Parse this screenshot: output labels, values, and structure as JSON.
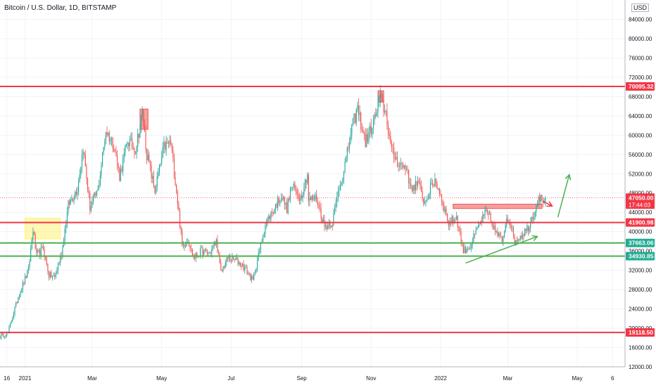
{
  "chart_data": {
    "type": "candlestick",
    "title": "Bitcoin / U.S. Dollar, 1D, BITSTAMP",
    "currency": "USD",
    "ylim": [
      12000,
      88000
    ],
    "y_ticks": [
      12000,
      16000,
      20000,
      24000,
      28000,
      32000,
      36000,
      40000,
      44000,
      48000,
      52000,
      56000,
      60000,
      64000,
      68000,
      72000,
      76000,
      80000,
      84000
    ],
    "y_tick_labels": [
      "12000.00",
      "16000.00",
      "20000.00",
      "24000.00",
      "28000.00",
      "32000.00",
      "36000.00",
      "40000.00",
      "44000.00",
      "48000.00",
      "52000.00",
      "56000.00",
      "60000.00",
      "64000.00",
      "68000.00",
      "72000.00",
      "76000.00",
      "80000.00",
      "84000.00"
    ],
    "x_ticks": [
      {
        "date": "2020-12-16",
        "label": "16"
      },
      {
        "date": "2021-01-01",
        "label": "2021"
      },
      {
        "date": "2021-03-01",
        "label": "Mar"
      },
      {
        "date": "2021-05-01",
        "label": "May"
      },
      {
        "date": "2021-07-01",
        "label": "Jul"
      },
      {
        "date": "2021-09-01",
        "label": "Sep"
      },
      {
        "date": "2021-11-01",
        "label": "Nov"
      },
      {
        "date": "2022-01-01",
        "label": "2022"
      },
      {
        "date": "2022-03-01",
        "label": "Mar"
      },
      {
        "date": "2022-05-01",
        "label": "May"
      },
      {
        "date": "2022-06-01",
        "label": "6"
      }
    ],
    "x_range": [
      "2020-12-10",
      "2022-06-12"
    ],
    "grid": true,
    "price_path": [
      [
        "2020-12-10",
        18300
      ],
      [
        "2020-12-17",
        19000
      ],
      [
        "2020-12-22",
        23200
      ],
      [
        "2020-12-26",
        26500
      ],
      [
        "2020-12-30",
        29000
      ],
      [
        "2021-01-04",
        32000
      ],
      [
        "2021-01-08",
        40500
      ],
      [
        "2021-01-11",
        35000
      ],
      [
        "2021-01-17",
        36500
      ],
      [
        "2021-01-22",
        31000
      ],
      [
        "2021-01-27",
        30500
      ],
      [
        "2021-02-02",
        35500
      ],
      [
        "2021-02-08",
        45500
      ],
      [
        "2021-02-16",
        49000
      ],
      [
        "2021-02-21",
        57500
      ],
      [
        "2021-02-27",
        45000
      ],
      [
        "2021-03-06",
        48500
      ],
      [
        "2021-03-13",
        61000
      ],
      [
        "2021-03-20",
        58000
      ],
      [
        "2021-03-25",
        51500
      ],
      [
        "2021-04-01",
        58900
      ],
      [
        "2021-04-08",
        57000
      ],
      [
        "2021-04-14",
        64500
      ],
      [
        "2021-04-18",
        56000
      ],
      [
        "2021-04-25",
        48500
      ],
      [
        "2021-05-03",
        57500
      ],
      [
        "2021-05-09",
        58500
      ],
      [
        "2021-05-14",
        48500
      ],
      [
        "2021-05-19",
        37000
      ],
      [
        "2021-05-24",
        38500
      ],
      [
        "2021-05-29",
        34500
      ],
      [
        "2021-06-05",
        36000
      ],
      [
        "2021-06-12",
        35500
      ],
      [
        "2021-06-18",
        38000
      ],
      [
        "2021-06-22",
        31500
      ],
      [
        "2021-06-28",
        34500
      ],
      [
        "2021-07-06",
        34000
      ],
      [
        "2021-07-13",
        32500
      ],
      [
        "2021-07-20",
        29800
      ],
      [
        "2021-07-25",
        35000
      ],
      [
        "2021-07-31",
        41500
      ],
      [
        "2021-08-07",
        44500
      ],
      [
        "2021-08-14",
        47500
      ],
      [
        "2021-08-19",
        44800
      ],
      [
        "2021-08-23",
        49500
      ],
      [
        "2021-08-31",
        47100
      ],
      [
        "2021-09-06",
        52000
      ],
      [
        "2021-09-07",
        46500
      ],
      [
        "2021-09-14",
        47000
      ],
      [
        "2021-09-21",
        41000
      ],
      [
        "2021-09-28",
        42000
      ],
      [
        "2021-10-03",
        48200
      ],
      [
        "2021-10-10",
        55000
      ],
      [
        "2021-10-15",
        61500
      ],
      [
        "2021-10-20",
        65500
      ],
      [
        "2021-10-27",
        58500
      ],
      [
        "2021-11-03",
        62500
      ],
      [
        "2021-11-09",
        67500
      ],
      [
        "2021-11-14",
        64500
      ],
      [
        "2021-11-19",
        56500
      ],
      [
        "2021-11-26",
        54000
      ],
      [
        "2021-12-03",
        53000
      ],
      [
        "2021-12-05",
        49000
      ],
      [
        "2021-12-12",
        50000
      ],
      [
        "2021-12-18",
        46000
      ],
      [
        "2021-12-27",
        50800
      ],
      [
        "2022-01-01",
        47600
      ],
      [
        "2022-01-08",
        41800
      ],
      [
        "2022-01-15",
        43000
      ],
      [
        "2022-01-21",
        36000
      ],
      [
        "2022-01-27",
        37000
      ],
      [
        "2022-02-04",
        41500
      ],
      [
        "2022-02-10",
        44000
      ],
      [
        "2022-02-14",
        42500
      ],
      [
        "2022-02-18",
        40000
      ],
      [
        "2022-02-24",
        38000
      ],
      [
        "2022-02-28",
        43000
      ],
      [
        "2022-03-03",
        42000
      ],
      [
        "2022-03-07",
        38000
      ],
      [
        "2022-03-14",
        39500
      ],
      [
        "2022-03-19",
        41000
      ],
      [
        "2022-03-25",
        44500
      ],
      [
        "2022-03-28",
        47400
      ],
      [
        "2022-03-31",
        46500
      ],
      [
        "2022-04-03",
        47050
      ]
    ],
    "price_labels": [
      {
        "value": 70095.32,
        "label": "70095.32",
        "color": "#f23645"
      },
      {
        "value": 47050.0,
        "label": "47050.00",
        "sub_label": "17:44:03",
        "color": "#f23645"
      },
      {
        "value": 41900.98,
        "label": "41900.98",
        "color": "#f23645"
      },
      {
        "value": 37663.06,
        "label": "37663.06",
        "color": "#22ab94"
      },
      {
        "value": 34930.85,
        "label": "34930.85",
        "color": "#22ab94"
      },
      {
        "value": 19118.5,
        "label": "19118.50",
        "color": "#f23645"
      }
    ],
    "horizontal_lines": [
      {
        "value": 70095.32,
        "color": "#f23645"
      },
      {
        "value": 41900.98,
        "color": "#f23645"
      },
      {
        "value": 37663.06,
        "color": "#4caf50"
      },
      {
        "value": 34930.85,
        "color": "#4caf50"
      },
      {
        "value": 19118.5,
        "color": "#f23645"
      }
    ],
    "last_price_line": {
      "value": 47050.0,
      "color": "#f23645"
    },
    "rectangles": [
      {
        "x1": "2021-01-01",
        "x2": "2021-02-01",
        "y1": 38500,
        "y2": 42800,
        "fill": "#fff176"
      },
      {
        "x1": "2021-04-12",
        "x2": "2021-04-19",
        "y1": 61200,
        "y2": 65400,
        "fill": "#ef5350"
      },
      {
        "x1": "2021-11-07",
        "x2": "2021-11-12",
        "y1": 66900,
        "y2": 69200,
        "fill": "#ef5350"
      },
      {
        "x1": "2022-01-12",
        "x2": "2022-03-31",
        "y1": 44800,
        "y2": 45700,
        "fill": "#ef5350"
      }
    ],
    "trendlines": [
      {
        "from": [
          "2022-01-23",
          33500
        ],
        "to": [
          "2022-03-27",
          39000
        ],
        "color": "#4caf50",
        "arrow": true
      },
      {
        "from": [
          "2022-04-01",
          46300
        ],
        "to": [
          "2022-04-09",
          45300
        ],
        "color": "#f23645",
        "arrow": true
      },
      {
        "from": [
          "2022-04-14",
          43000
        ],
        "to": [
          "2022-04-24",
          51800
        ],
        "color": "#4caf50",
        "arrow": true
      }
    ],
    "colors": {
      "up": "#26a69a",
      "down": "#ef5350",
      "grid": "#f0f3fa",
      "axis_text": "#131722"
    }
  }
}
